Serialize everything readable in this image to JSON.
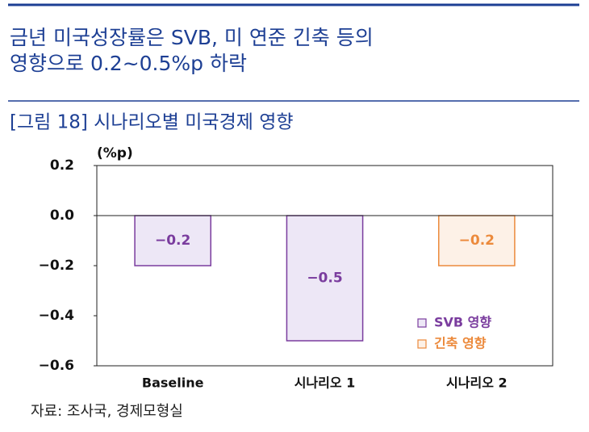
{
  "headline": [
    "금년 미국성장률은 SVB, 미 연준 긴축 등의",
    "영향으로 0.2~0.5%p 하락"
  ],
  "figure_title": "[그림 18] 시나리오별 미국경제 영향",
  "source": "자료: 조사국, 경제모형실",
  "chart_data": {
    "type": "bar",
    "y_label": "(%p)",
    "categories": [
      "Baseline",
      "시나리오 1",
      "시나리오 2"
    ],
    "series": [
      {
        "name": "SVB 영향",
        "color": "#7a3c9e",
        "fill": "#ede7f6",
        "values": [
          -0.2,
          -0.5,
          null
        ],
        "value_labels": [
          "−0.2",
          "−0.5",
          null
        ]
      },
      {
        "name": "긴축 영향",
        "color": "#ec8a3c",
        "fill": "#fdf1e7",
        "values": [
          null,
          null,
          -0.2
        ],
        "value_labels": [
          null,
          null,
          "−0.2"
        ]
      }
    ],
    "ylim": [
      -0.6,
      0.2
    ],
    "yticks": [
      0.2,
      {
        "value": 0,
        "label": "0.0"
      },
      {
        "value": -0.2,
        "label": "−0.2"
      },
      {
        "value": -0.4,
        "label": "−0.4"
      },
      {
        "value": -0.6,
        "label": "−0.6"
      }
    ],
    "legend": "lower-right"
  }
}
